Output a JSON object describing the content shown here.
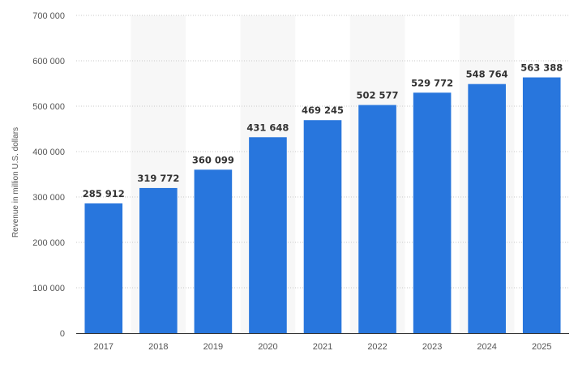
{
  "chart_data": {
    "type": "bar",
    "title": "",
    "xlabel": "",
    "ylabel": "Revenue in million U.S. dollars",
    "categories": [
      "2017",
      "2018",
      "2019",
      "2020",
      "2021",
      "2022",
      "2023",
      "2024",
      "2025"
    ],
    "values": [
      285912,
      319772,
      360099,
      431648,
      469245,
      502577,
      529772,
      548764,
      563388
    ],
    "value_labels": [
      "285 912",
      "319 772",
      "360 099",
      "431 648",
      "469 245",
      "502 577",
      "529 772",
      "548 764",
      "563 388"
    ],
    "ylim": [
      0,
      700000
    ],
    "yticks": [
      0,
      100000,
      200000,
      300000,
      400000,
      500000,
      600000,
      700000
    ],
    "ytick_labels": [
      "0",
      "100 000",
      "200 000",
      "300 000",
      "400 000",
      "500 000",
      "600 000",
      "700 000"
    ],
    "grid": true,
    "legend": "none",
    "colors": {
      "bar": "#2876dd",
      "band": "#f7f7f7",
      "grid": "#c8c8c8",
      "axis": "#333333"
    }
  }
}
